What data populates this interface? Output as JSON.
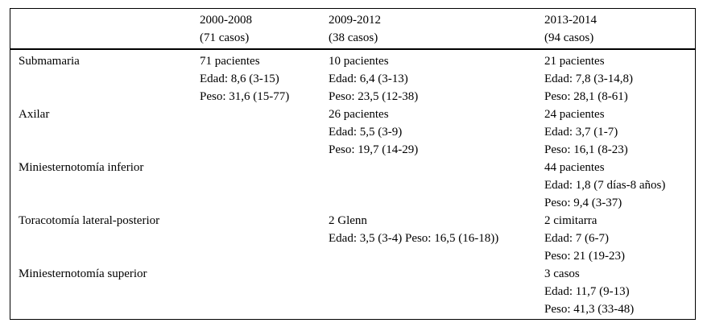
{
  "page": {
    "background": "#ffffff",
    "text_color": "#000000",
    "border_color": "#000000"
  },
  "table": {
    "header": {
      "corner": "",
      "columns": [
        {
          "period": "2000-2008",
          "cases": "(71 casos)"
        },
        {
          "period": "2009-2012",
          "cases": "(38 casos)"
        },
        {
          "period": "2013-2014",
          "cases": "(94 casos)"
        }
      ]
    },
    "rows": [
      {
        "label": "Submamaria",
        "cells": [
          {
            "lines": [
              "71 pacientes",
              "Edad: 8,6 (3-15)",
              "Peso: 31,6 (15-77)"
            ]
          },
          {
            "lines": [
              "10 pacientes",
              "Edad: 6,4 (3-13)",
              "Peso: 23,5 (12-38)"
            ]
          },
          {
            "lines": [
              "21 pacientes",
              "Edad: 7,8 (3-14,8)",
              "Peso: 28,1 (8-61)"
            ]
          }
        ]
      },
      {
        "label": "Axilar",
        "cells": [
          {
            "lines": []
          },
          {
            "lines": [
              "26 pacientes",
              "Edad: 5,5 (3-9)",
              "Peso: 19,7 (14-29)"
            ]
          },
          {
            "lines": [
              "24 pacientes",
              "Edad: 3,7 (1-7)",
              "Peso: 16,1 (8-23)"
            ]
          }
        ]
      },
      {
        "label": "Miniesternotomía inferior",
        "cells": [
          {
            "lines": []
          },
          {
            "lines": []
          },
          {
            "lines": [
              "44 pacientes",
              "Edad: 1,8 (7 días-8 años)",
              "Peso: 9,4 (3-37)"
            ]
          }
        ]
      },
      {
        "label": "Toracotomía lateral-posterior",
        "cells": [
          {
            "lines": []
          },
          {
            "lines": [
              "2 Glenn",
              "Edad: 3,5 (3-4) Peso: 16,5 (16-18))"
            ]
          },
          {
            "lines": [
              "2 cimitarra",
              "Edad: 7 (6-7)",
              "Peso: 21 (19-23)"
            ]
          }
        ]
      },
      {
        "label": "Miniesternotomía superior",
        "cells": [
          {
            "lines": []
          },
          {
            "lines": []
          },
          {
            "lines": [
              "3 casos",
              "Edad: 11,7 (9-13)",
              "Peso: 41,3 (33-48)"
            ]
          }
        ]
      }
    ]
  }
}
